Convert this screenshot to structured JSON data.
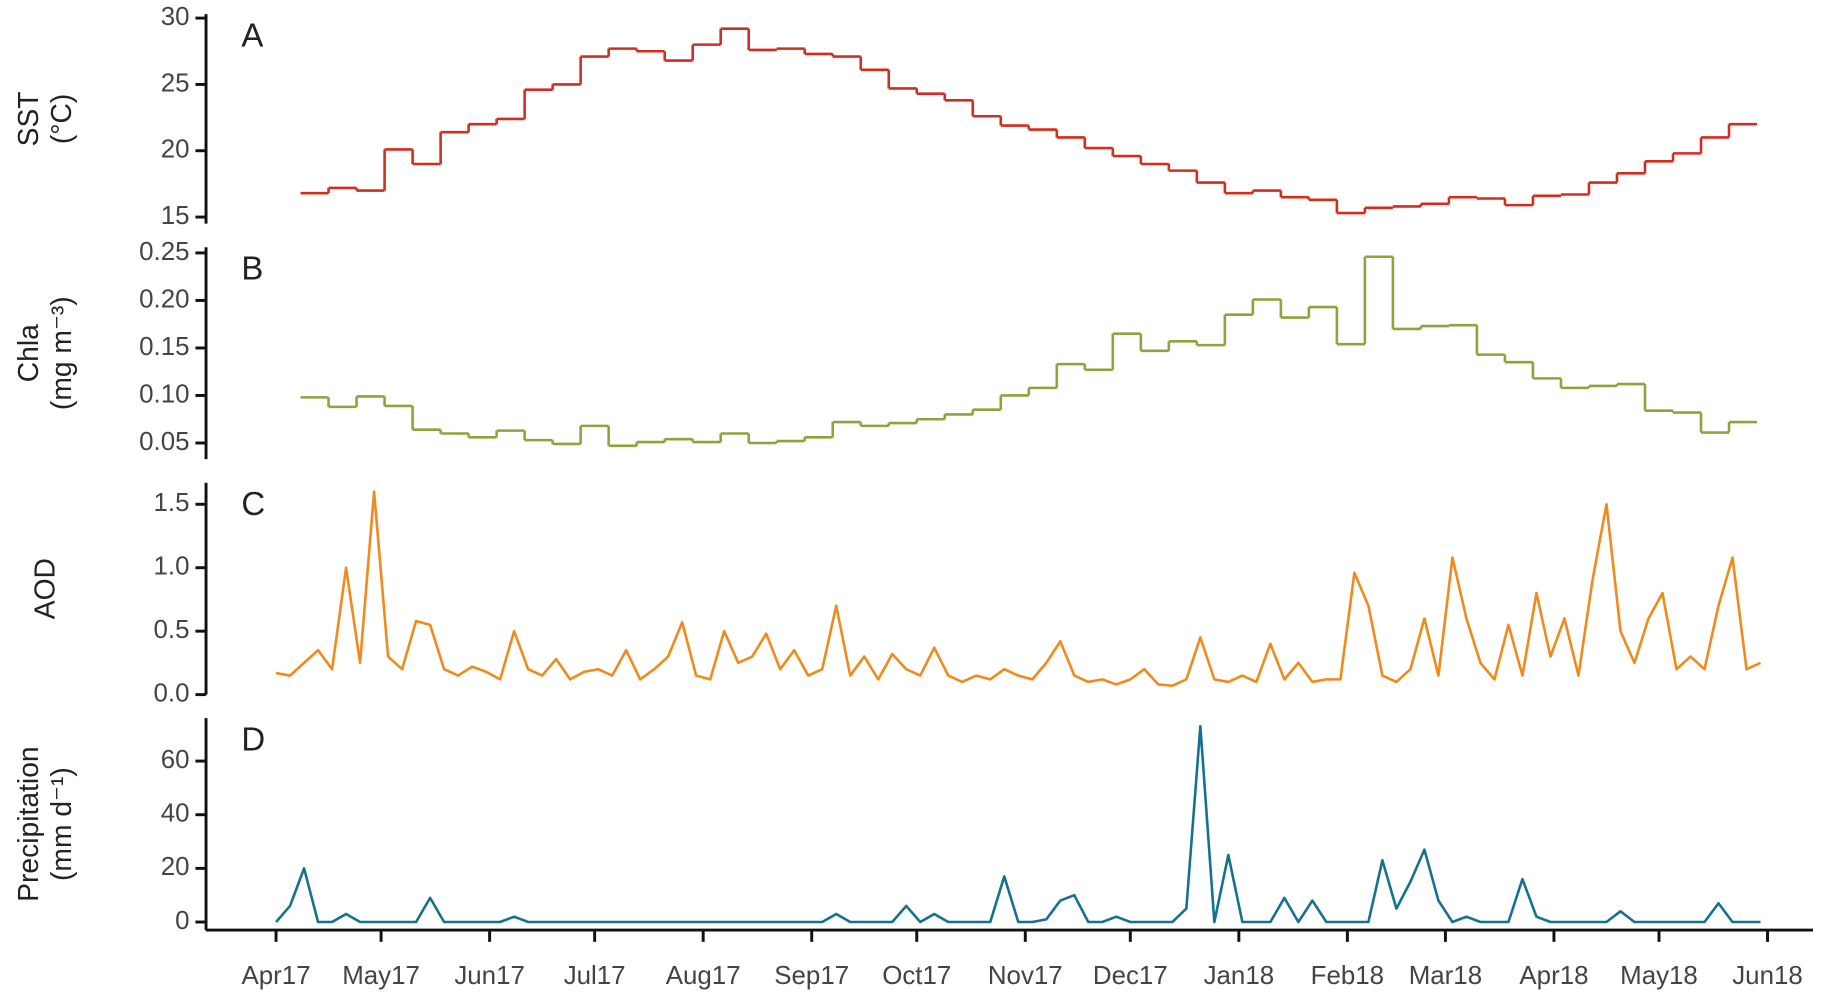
{
  "chart_data": [
    {
      "type": "step",
      "panel_label": "A",
      "ylabel": [
        "SST",
        "(°C)"
      ],
      "color": "#d42c1f",
      "xlim": [
        -20,
        439
      ],
      "ylim": [
        14.5,
        30.3
      ],
      "yticks": [
        15,
        20,
        25,
        30
      ],
      "x": [
        7,
        15,
        23,
        31,
        39,
        47,
        55,
        63,
        71,
        79,
        87,
        95,
        103,
        111,
        119,
        127,
        135,
        143,
        151,
        159,
        167,
        175,
        183,
        191,
        199,
        207,
        215,
        223,
        231,
        239,
        247,
        255,
        263,
        271,
        279,
        287,
        295,
        303,
        311,
        319,
        327,
        335,
        343,
        351,
        359,
        367,
        375,
        383,
        391,
        399,
        407,
        415
      ],
      "values": [
        16.8,
        17.2,
        17.0,
        20.1,
        19.0,
        21.4,
        22.0,
        22.4,
        24.6,
        25.0,
        27.1,
        27.7,
        27.5,
        26.8,
        28.0,
        29.2,
        27.6,
        27.7,
        27.3,
        27.1,
        26.1,
        24.7,
        24.3,
        23.8,
        22.6,
        21.9,
        21.6,
        21.0,
        20.2,
        19.6,
        19.0,
        18.5,
        17.6,
        16.8,
        17.0,
        16.5,
        16.3,
        15.3,
        15.7,
        15.8,
        16.0,
        16.5,
        16.4,
        15.9,
        16.6,
        16.7,
        17.6,
        18.3,
        19.2,
        19.8,
        21.0,
        22.0
      ]
    },
    {
      "type": "step",
      "panel_label": "B",
      "ylabel": [
        "Chla",
        "(mg m⁻³)"
      ],
      "color": "#8aa53c",
      "xlim": [
        -20,
        439
      ],
      "ylim": [
        0.033,
        0.256
      ],
      "yticks": [
        0.05,
        {
          "value": 0.1,
          "label": "0.10"
        },
        0.15,
        {
          "value": 0.2,
          "label": "0.20"
        },
        0.25
      ],
      "x": [
        7,
        15,
        23,
        31,
        39,
        47,
        55,
        63,
        71,
        79,
        87,
        95,
        103,
        111,
        119,
        127,
        135,
        143,
        151,
        159,
        167,
        175,
        183,
        191,
        199,
        207,
        215,
        223,
        231,
        239,
        247,
        255,
        263,
        271,
        279,
        287,
        295,
        303,
        311,
        319,
        327,
        335,
        343,
        351,
        359,
        367,
        375,
        383,
        391,
        399,
        407,
        415
      ],
      "values": [
        0.098,
        0.088,
        0.099,
        0.089,
        0.064,
        0.06,
        0.056,
        0.063,
        0.053,
        0.049,
        0.068,
        0.047,
        0.051,
        0.054,
        0.051,
        0.06,
        0.05,
        0.052,
        0.056,
        0.072,
        0.068,
        0.071,
        0.075,
        0.08,
        0.085,
        0.1,
        0.108,
        0.133,
        0.127,
        0.165,
        0.147,
        0.157,
        0.153,
        0.185,
        0.201,
        0.182,
        0.193,
        0.154,
        0.246,
        0.17,
        0.173,
        0.174,
        0.143,
        0.135,
        0.118,
        0.108,
        0.11,
        0.112,
        0.084,
        0.082,
        0.061,
        0.072
      ]
    },
    {
      "type": "line",
      "panel_label": "C",
      "ylabel": [
        "AOD"
      ],
      "color": "#f08a1c",
      "xlim": [
        -20,
        439
      ],
      "ylim": [
        0,
        1.67
      ],
      "yticks": [
        {
          "value": 0,
          "label": "0.0"
        },
        0.5,
        {
          "value": 1,
          "label": "1.0"
        },
        1.5
      ],
      "x": [
        0,
        4,
        8,
        12,
        16,
        20,
        24,
        28,
        32,
        36,
        40,
        44,
        48,
        52,
        56,
        60,
        64,
        68,
        72,
        76,
        80,
        84,
        88,
        92,
        96,
        100,
        104,
        108,
        112,
        116,
        120,
        124,
        128,
        132,
        136,
        140,
        144,
        148,
        152,
        156,
        160,
        164,
        168,
        172,
        176,
        180,
        184,
        188,
        192,
        196,
        200,
        204,
        208,
        212,
        216,
        220,
        224,
        228,
        232,
        236,
        240,
        244,
        248,
        252,
        256,
        260,
        264,
        268,
        272,
        276,
        280,
        284,
        288,
        292,
        296,
        300,
        304,
        308,
        312,
        316,
        320,
        324,
        328,
        332,
        336,
        340,
        344,
        348,
        352,
        356,
        360,
        364,
        368,
        372,
        376,
        380,
        384,
        388,
        392,
        396,
        400,
        404,
        408,
        412,
        416,
        420,
        424
      ],
      "values": [
        0.17,
        0.15,
        0.25,
        0.35,
        0.2,
        1.0,
        0.25,
        1.6,
        0.3,
        0.2,
        0.58,
        0.55,
        0.2,
        0.15,
        0.22,
        0.18,
        0.12,
        0.5,
        0.2,
        0.15,
        0.28,
        0.12,
        0.18,
        0.2,
        0.15,
        0.35,
        0.12,
        0.2,
        0.3,
        0.57,
        0.15,
        0.12,
        0.5,
        0.25,
        0.3,
        0.48,
        0.2,
        0.35,
        0.15,
        0.2,
        0.7,
        0.15,
        0.3,
        0.12,
        0.32,
        0.2,
        0.15,
        0.37,
        0.15,
        0.1,
        0.15,
        0.12,
        0.2,
        0.15,
        0.12,
        0.25,
        0.42,
        0.15,
        0.1,
        0.12,
        0.08,
        0.12,
        0.2,
        0.08,
        0.07,
        0.12,
        0.45,
        0.12,
        0.1,
        0.15,
        0.1,
        0.4,
        0.12,
        0.25,
        0.1,
        0.12,
        0.12,
        0.96,
        0.7,
        0.15,
        0.1,
        0.2,
        0.6,
        0.15,
        1.08,
        0.6,
        0.25,
        0.12,
        0.55,
        0.15,
        0.8,
        0.3,
        0.6,
        0.15,
        0.9,
        1.5,
        0.5,
        0.25,
        0.6,
        0.8,
        0.2,
        0.3,
        0.2,
        0.7,
        1.08,
        0.2,
        0.25
      ]
    },
    {
      "type": "line",
      "panel_label": "D",
      "ylabel": [
        "Precipitation",
        "(mm d⁻¹)"
      ],
      "color": "#15728f",
      "xlim": [
        -20,
        439
      ],
      "ylim": [
        -3,
        76
      ],
      "yticks": [
        0,
        20,
        40,
        60
      ],
      "xticks": [
        {
          "value": 0,
          "label": "Apr17"
        },
        {
          "value": 30,
          "label": "May17"
        },
        {
          "value": 61,
          "label": "Jun17"
        },
        {
          "value": 91,
          "label": "Jul17"
        },
        {
          "value": 122,
          "label": "Aug17"
        },
        {
          "value": 153,
          "label": "Sep17"
        },
        {
          "value": 183,
          "label": "Oct17"
        },
        {
          "value": 214,
          "label": "Nov17"
        },
        {
          "value": 244,
          "label": "Dec17"
        },
        {
          "value": 275,
          "label": "Jan18"
        },
        {
          "value": 306,
          "label": "Feb18"
        },
        {
          "value": 334,
          "label": "Mar18"
        },
        {
          "value": 365,
          "label": "Apr18"
        },
        {
          "value": 395,
          "label": "May18"
        },
        {
          "value": 426,
          "label": "Jun18"
        }
      ],
      "x": [
        0,
        4,
        8,
        12,
        16,
        20,
        24,
        28,
        32,
        36,
        40,
        44,
        48,
        52,
        56,
        60,
        64,
        68,
        72,
        76,
        80,
        84,
        88,
        92,
        96,
        100,
        104,
        108,
        112,
        116,
        120,
        124,
        128,
        132,
        136,
        140,
        144,
        148,
        152,
        156,
        160,
        164,
        168,
        172,
        176,
        180,
        184,
        188,
        192,
        196,
        200,
        204,
        208,
        212,
        216,
        220,
        224,
        228,
        232,
        236,
        240,
        244,
        248,
        252,
        256,
        260,
        264,
        268,
        272,
        276,
        280,
        284,
        288,
        292,
        296,
        300,
        304,
        308,
        312,
        316,
        320,
        324,
        328,
        332,
        336,
        340,
        344,
        348,
        352,
        356,
        360,
        364,
        368,
        372,
        376,
        380,
        384,
        388,
        392,
        396,
        400,
        404,
        408,
        412,
        416,
        420,
        424
      ],
      "values": [
        0,
        6,
        20,
        0,
        0,
        3,
        0,
        0,
        0,
        0,
        0,
        9,
        0,
        0,
        0,
        0,
        0,
        2,
        0,
        0,
        0,
        0,
        0,
        0,
        0,
        0,
        0,
        0,
        0,
        0,
        0,
        0,
        0,
        0,
        0,
        0,
        0,
        0,
        0,
        0,
        3,
        0,
        0,
        0,
        0,
        6,
        0,
        3,
        0,
        0,
        0,
        0,
        17,
        0,
        0,
        1,
        8,
        10,
        0,
        0,
        2,
        0,
        0,
        0,
        0,
        5,
        73,
        0,
        25,
        0,
        0,
        0,
        9,
        0,
        8,
        0,
        0,
        0,
        0,
        23,
        5,
        15,
        27,
        8,
        0,
        2,
        0,
        0,
        0,
        16,
        2,
        0,
        0,
        0,
        0,
        0,
        4,
        0,
        0,
        0,
        0,
        0,
        0,
        7,
        0,
        0,
        0
      ]
    }
  ]
}
